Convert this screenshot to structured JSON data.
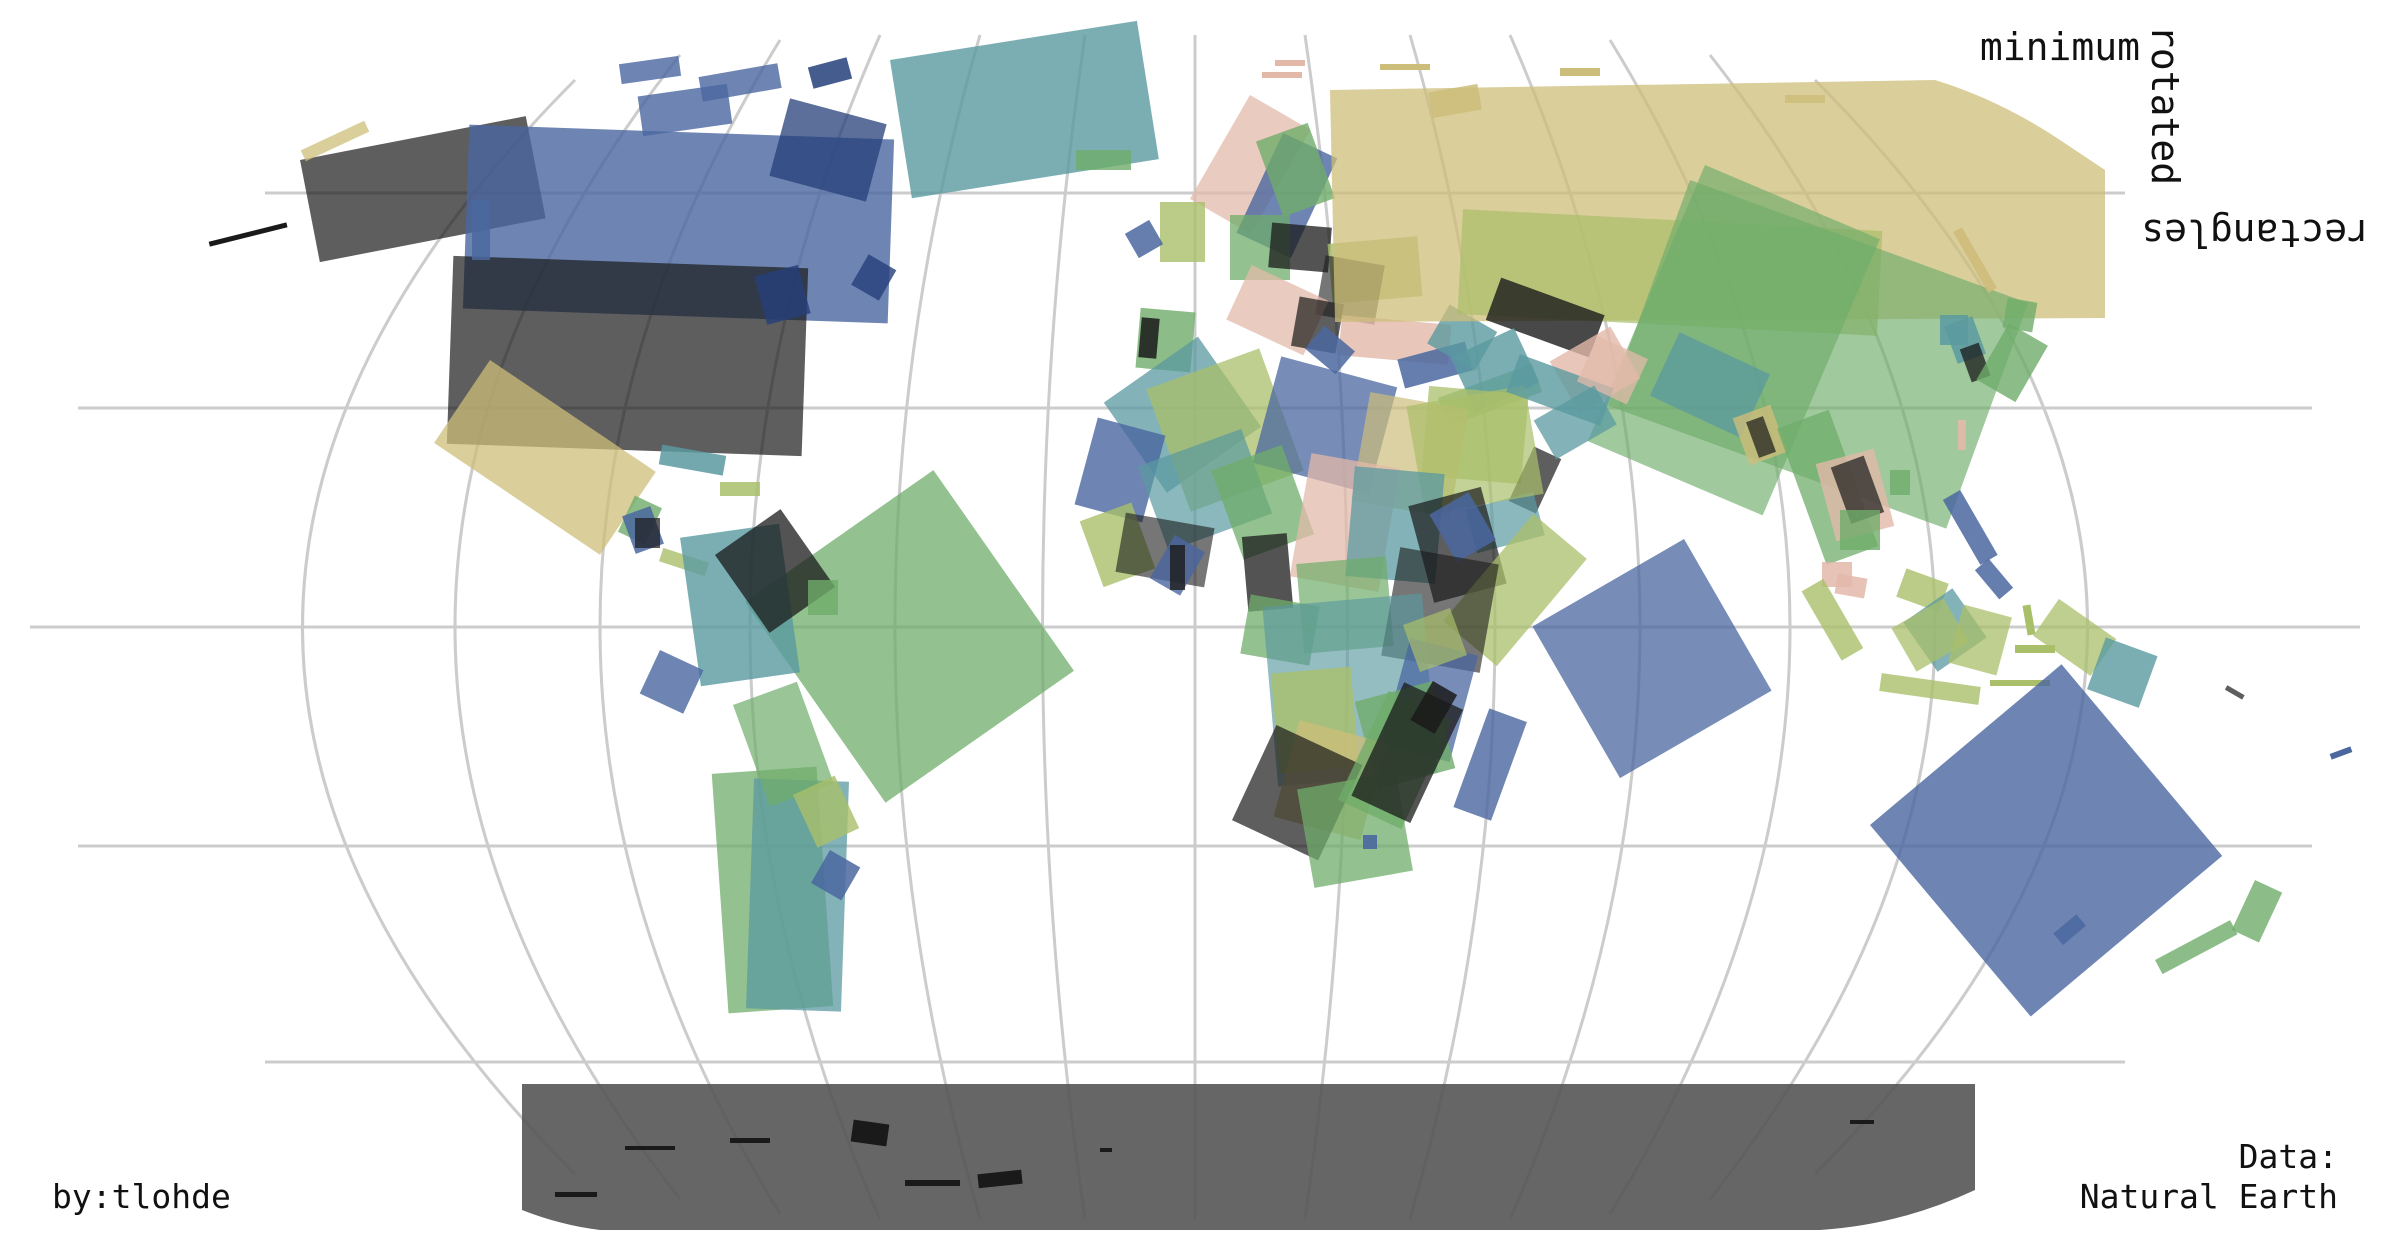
{
  "title_words": [
    "minimum",
    "rotated",
    "rectangles"
  ],
  "credit_left": "by:tlohde",
  "credit_right_lines": [
    "Data:",
    "Natural Earth"
  ],
  "palette": {
    "blue": "#4a67a0",
    "teal": "#5a9aa0",
    "green": "#6fac6a",
    "olive": "#a9bf6a",
    "tan": "#cdbd7a",
    "pink": "#e2b9a9",
    "dark": "#1a1a1a",
    "grey": "#555555",
    "graticule": "#cccccc"
  }
}
